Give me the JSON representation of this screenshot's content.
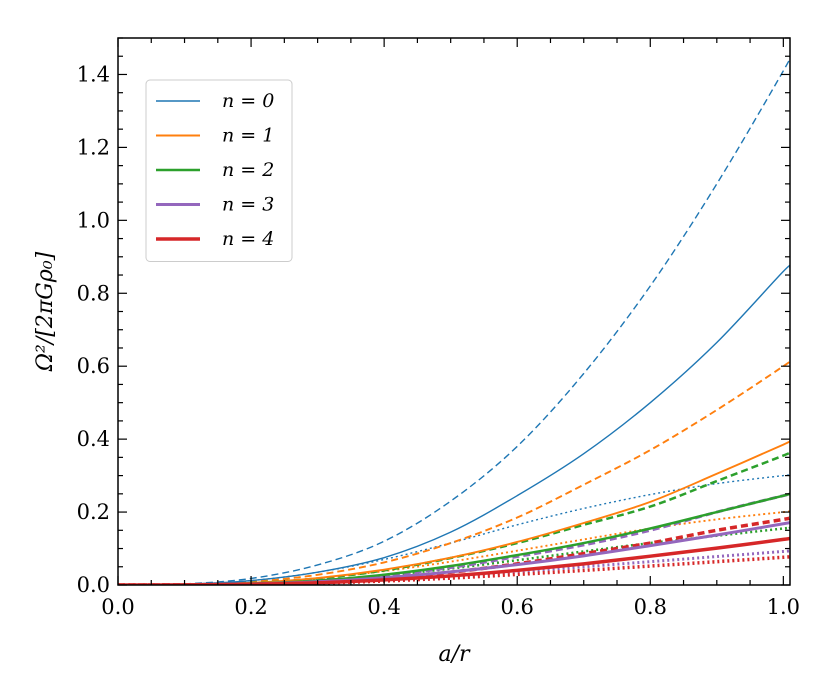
{
  "chart_data": {
    "type": "line",
    "xlabel": "a/r",
    "ylabel": "Ω²/[2πGρ₀]",
    "xlim": [
      0.0,
      1.01
    ],
    "ylim": [
      0.0,
      1.5
    ],
    "xticks": [
      "0.0",
      "0.2",
      "0.4",
      "0.6",
      "0.8",
      "1.0"
    ],
    "yticks": [
      "0.0",
      "0.2",
      "0.4",
      "0.6",
      "0.8",
      "1.0",
      "1.2",
      "1.4"
    ],
    "xtick_values": [
      0.0,
      0.2,
      0.4,
      0.6,
      0.8,
      1.0
    ],
    "ytick_values": [
      0.0,
      0.2,
      0.4,
      0.6,
      0.8,
      1.0,
      1.2,
      1.4
    ],
    "grid": false,
    "legend_position": "top-left",
    "x": [
      0.0,
      0.1,
      0.2,
      0.3,
      0.4,
      0.5,
      0.6,
      0.7,
      0.8,
      0.9,
      1.0,
      1.01
    ],
    "series": [
      {
        "name": "n = 0",
        "legend": true,
        "color": "#1f77b4",
        "style": "solid",
        "width": "thin",
        "values": [
          0.0,
          0.002,
          0.012,
          0.035,
          0.075,
          0.145,
          0.245,
          0.36,
          0.5,
          0.665,
          0.86,
          0.87
        ]
      },
      {
        "name": "n = 1",
        "legend": true,
        "color": "#ff7f0e",
        "style": "solid",
        "width": "medium",
        "values": [
          0.0,
          0.001,
          0.006,
          0.019,
          0.042,
          0.075,
          0.118,
          0.17,
          0.228,
          0.305,
          0.385,
          0.395
        ]
      },
      {
        "name": "n = 2",
        "legend": true,
        "color": "#2ca02c",
        "style": "solid",
        "width": "thick",
        "values": [
          0.0,
          0.001,
          0.004,
          0.012,
          0.028,
          0.052,
          0.082,
          0.115,
          0.155,
          0.2,
          0.245,
          0.25
        ]
      },
      {
        "name": "n = 3",
        "legend": true,
        "color": "#9467bd",
        "style": "solid",
        "width": "thicker",
        "values": [
          0.0,
          0.0005,
          0.003,
          0.009,
          0.02,
          0.036,
          0.056,
          0.08,
          0.108,
          0.137,
          0.168,
          0.171
        ]
      },
      {
        "name": "n = 4",
        "legend": true,
        "color": "#d62728",
        "style": "solid",
        "width": "thickest",
        "values": [
          0.0,
          0.0003,
          0.002,
          0.006,
          0.014,
          0.025,
          0.04,
          0.058,
          0.079,
          0.101,
          0.125,
          0.128
        ]
      },
      {
        "color": "#1f77b4",
        "style": "dashed",
        "width": "thin",
        "values": [
          0.0,
          0.003,
          0.018,
          0.055,
          0.12,
          0.23,
          0.38,
          0.58,
          0.82,
          1.1,
          1.41,
          1.45
        ]
      },
      {
        "color": "#ff7f0e",
        "style": "dashed",
        "width": "medium",
        "values": [
          0.0,
          0.0015,
          0.009,
          0.028,
          0.062,
          0.115,
          0.185,
          0.275,
          0.37,
          0.48,
          0.6,
          0.615
        ]
      },
      {
        "color": "#2ca02c",
        "style": "dashed",
        "width": "thick",
        "values": [
          0.0,
          0.001,
          0.006,
          0.018,
          0.04,
          0.074,
          0.115,
          0.165,
          0.215,
          0.285,
          0.355,
          0.365
        ]
      },
      {
        "color": "#9467bd",
        "style": "dashed",
        "width": "thicker",
        "values": [
          0.0,
          0.0007,
          0.004,
          0.012,
          0.026,
          0.048,
          0.078,
          0.11,
          0.15,
          0.2,
          0.245,
          0.25
        ]
      },
      {
        "color": "#d62728",
        "style": "dashed",
        "width": "thickest",
        "values": [
          0.0,
          0.0005,
          0.003,
          0.009,
          0.019,
          0.035,
          0.058,
          0.086,
          0.115,
          0.15,
          0.18,
          0.185
        ]
      },
      {
        "color": "#1f77b4",
        "style": "dotted",
        "width": "thin",
        "values": [
          0.0,
          0.002,
          0.012,
          0.035,
          0.07,
          0.115,
          0.165,
          0.21,
          0.248,
          0.278,
          0.3,
          0.302
        ]
      },
      {
        "color": "#ff7f0e",
        "style": "dotted",
        "width": "medium",
        "values": [
          0.0,
          0.001,
          0.006,
          0.018,
          0.038,
          0.064,
          0.094,
          0.125,
          0.155,
          0.18,
          0.2,
          0.202
        ]
      },
      {
        "color": "#2ca02c",
        "style": "dotted",
        "width": "thick",
        "values": [
          0.0,
          0.0008,
          0.004,
          0.012,
          0.026,
          0.045,
          0.068,
          0.092,
          0.115,
          0.135,
          0.155,
          0.157
        ]
      },
      {
        "color": "#9467bd",
        "style": "dotted",
        "width": "thicker",
        "values": [
          0.0,
          0.0005,
          0.003,
          0.007,
          0.014,
          0.024,
          0.036,
          0.05,
          0.064,
          0.078,
          0.092,
          0.093
        ]
      },
      {
        "color": "#d62728",
        "style": "dotted",
        "width": "thickest",
        "values": [
          0.0,
          0.0004,
          0.002,
          0.005,
          0.011,
          0.019,
          0.029,
          0.04,
          0.052,
          0.064,
          0.076,
          0.077
        ]
      }
    ]
  }
}
